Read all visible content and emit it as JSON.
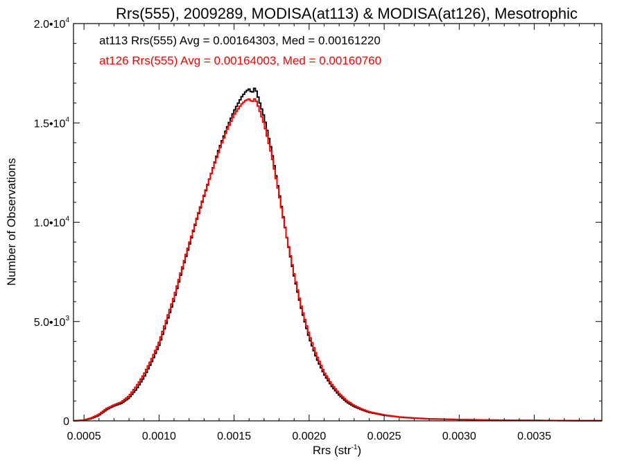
{
  "chart_data": {
    "type": "line",
    "title": "Rrs(555), 2009289, MODISA(at113) & MODISA(at126), Mesotrophic",
    "xlabel": {
      "base": "Rrs (str",
      "sup": "-1",
      "tail": ")"
    },
    "ylabel": "Number of Observations",
    "xlim": [
      0.00043,
      0.00395
    ],
    "ylim": [
      0,
      20000
    ],
    "x_ticks": [
      {
        "value": 0.0005,
        "label": "0.0005"
      },
      {
        "value": 0.001,
        "label": "0.0010"
      },
      {
        "value": 0.0015,
        "label": "0.0015"
      },
      {
        "value": 0.002,
        "label": "0.0020"
      },
      {
        "value": 0.0025,
        "label": "0.0025"
      },
      {
        "value": 0.003,
        "label": "0.0030"
      },
      {
        "value": 0.0035,
        "label": "0.0035"
      }
    ],
    "y_ticks": [
      {
        "value": 0,
        "mant": "0",
        "exp": ""
      },
      {
        "value": 5000,
        "mant": "5.0•10",
        "exp": "3"
      },
      {
        "value": 10000,
        "mant": "1.0•10",
        "exp": "4"
      },
      {
        "value": 15000,
        "mant": "1.5•10",
        "exp": "4"
      },
      {
        "value": 20000,
        "mant": "2.0•10",
        "exp": "4"
      }
    ],
    "legend": [
      {
        "text": "at113 Rrs(555) Avg = 0.00164303, Med = 0.00161220",
        "color": "#000000"
      },
      {
        "text": "at126 Rrs(555) Avg = 0.00164003, Med = 0.00160760",
        "color": "#ff0000"
      }
    ],
    "legend_position": "top-left",
    "step": "histogram",
    "series": [
      {
        "color": "#000000",
        "x": [
          0.00043,
          0.0005,
          0.00055,
          0.0006,
          0.00065,
          0.0007,
          0.00075,
          0.0008,
          0.00085,
          0.0009,
          0.00095,
          0.001,
          0.00105,
          0.0011,
          0.00115,
          0.0012,
          0.00125,
          0.0013,
          0.00135,
          0.0014,
          0.00145,
          0.0015,
          0.00155,
          0.00158,
          0.0016,
          0.00162,
          0.00164,
          0.00166,
          0.00168,
          0.0017,
          0.00175,
          0.0018,
          0.00185,
          0.0019,
          0.00195,
          0.002,
          0.00205,
          0.0021,
          0.00215,
          0.0022,
          0.00225,
          0.0023,
          0.00235,
          0.0024,
          0.0025,
          0.0026,
          0.0027,
          0.0028,
          0.003,
          0.0032,
          0.0034,
          0.0036,
          0.0038,
          0.00395
        ],
        "y": [
          0,
          30,
          120,
          280,
          560,
          750,
          880,
          1150,
          1600,
          2200,
          2950,
          3800,
          4950,
          6100,
          7500,
          8800,
          10100,
          11300,
          12500,
          13700,
          14700,
          15600,
          16300,
          16600,
          16700,
          16500,
          16800,
          16300,
          15800,
          15300,
          13600,
          11500,
          9300,
          7300,
          5600,
          4200,
          3150,
          2350,
          1750,
          1300,
          950,
          720,
          560,
          430,
          280,
          190,
          135,
          100,
          65,
          40,
          25,
          18,
          10,
          5
        ]
      },
      {
        "color": "#ff0000",
        "x": [
          0.00043,
          0.0005,
          0.00055,
          0.0006,
          0.00065,
          0.0007,
          0.00075,
          0.0008,
          0.00085,
          0.0009,
          0.00095,
          0.001,
          0.00105,
          0.0011,
          0.00115,
          0.0012,
          0.00125,
          0.0013,
          0.00135,
          0.0014,
          0.00145,
          0.0015,
          0.00155,
          0.00158,
          0.0016,
          0.00162,
          0.00164,
          0.00166,
          0.00168,
          0.0017,
          0.00175,
          0.0018,
          0.00185,
          0.0019,
          0.00195,
          0.002,
          0.00205,
          0.0021,
          0.00215,
          0.0022,
          0.00225,
          0.0023,
          0.00235,
          0.0024,
          0.0025,
          0.0026,
          0.0027,
          0.0028,
          0.003,
          0.0032,
          0.0034,
          0.0036,
          0.0038,
          0.00395
        ],
        "y": [
          0,
          40,
          150,
          330,
          620,
          800,
          950,
          1250,
          1750,
          2350,
          3100,
          3950,
          5100,
          6250,
          7600,
          8900,
          10150,
          11350,
          12500,
          13600,
          14600,
          15400,
          15950,
          16150,
          16200,
          16050,
          16250,
          15850,
          15400,
          14950,
          13400,
          11400,
          9300,
          7400,
          5700,
          4350,
          3300,
          2450,
          1850,
          1380,
          1020,
          780,
          600,
          460,
          300,
          200,
          145,
          105,
          70,
          45,
          28,
          20,
          12,
          6
        ]
      }
    ]
  }
}
